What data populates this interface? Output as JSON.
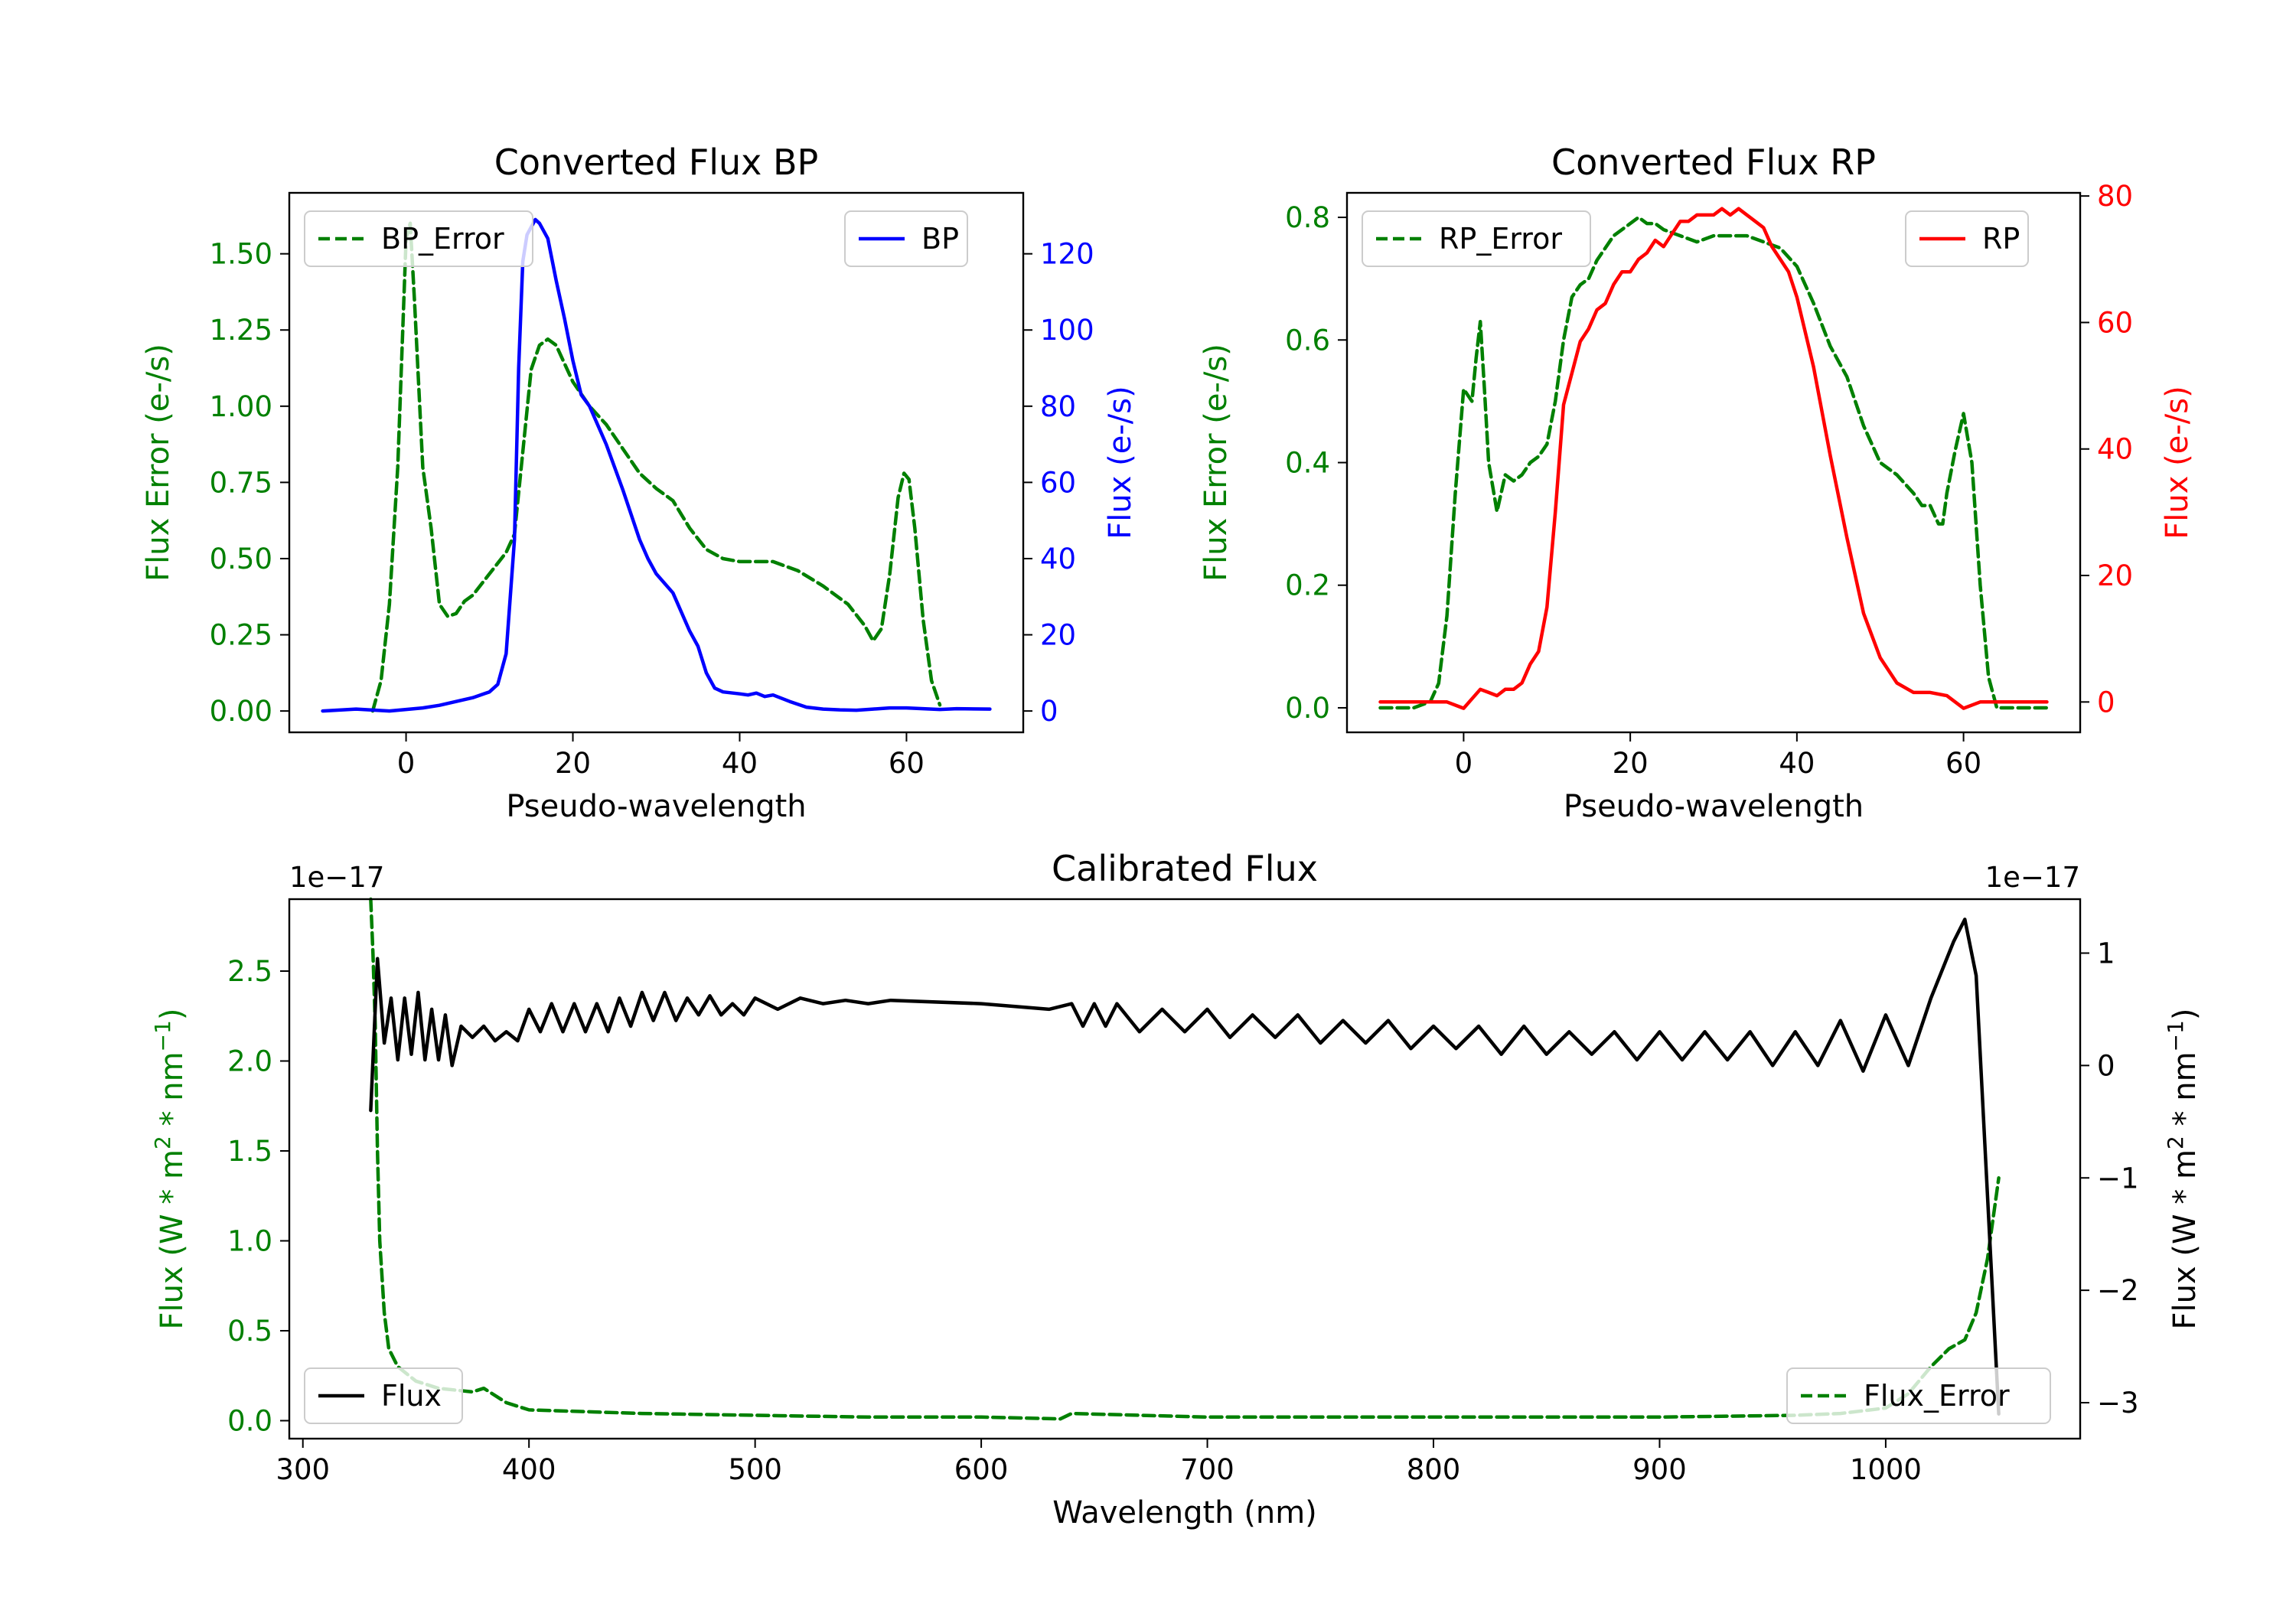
{
  "chart_data": [
    {
      "id": "bp",
      "type": "line",
      "title": "Converted Flux BP",
      "xlabel": "Pseudo-wavelength",
      "ylabel_left": "Flux Error (e-/s)",
      "ylabel_right": "Flux (e-/s)",
      "xlim": [
        -14,
        74
      ],
      "ylim_left": [
        -0.07,
        1.7
      ],
      "ylim_right": [
        -5.6,
        136
      ],
      "xticks": [
        0,
        20,
        40,
        60
      ],
      "yticks_left": [
        "0.00",
        "0.25",
        "0.50",
        "0.75",
        "1.00",
        "1.25",
        "1.50"
      ],
      "yticks_right": [
        "0",
        "20",
        "40",
        "60",
        "80",
        "100",
        "120"
      ],
      "left_color": "#008000",
      "right_color": "#0000ff",
      "series": [
        {
          "name": "BP_Error",
          "axis": "left",
          "style": "dashed",
          "color": "#008000",
          "x": [
            -4,
            -3,
            -2,
            -1,
            0,
            0.5,
            1,
            2,
            3,
            4,
            5,
            6,
            7,
            8,
            10,
            12,
            13,
            14,
            15,
            16,
            17,
            18,
            19,
            20,
            22,
            24,
            26,
            28,
            30,
            32,
            34,
            36,
            38,
            40,
            44,
            47,
            50,
            53,
            55,
            56,
            57,
            58,
            59,
            59.7,
            60.3,
            61,
            62,
            63,
            64
          ],
          "values": [
            0.0,
            0.1,
            0.35,
            0.8,
            1.55,
            1.6,
            1.35,
            0.8,
            0.6,
            0.35,
            0.31,
            0.32,
            0.36,
            0.38,
            0.45,
            0.52,
            0.58,
            0.85,
            1.12,
            1.2,
            1.22,
            1.2,
            1.14,
            1.08,
            1.0,
            0.94,
            0.86,
            0.78,
            0.73,
            0.69,
            0.6,
            0.53,
            0.5,
            0.49,
            0.49,
            0.46,
            0.41,
            0.35,
            0.28,
            0.23,
            0.27,
            0.45,
            0.7,
            0.78,
            0.76,
            0.6,
            0.3,
            0.1,
            0.02
          ]
        },
        {
          "name": "BP",
          "axis": "right",
          "style": "solid",
          "color": "#0000ff",
          "x": [
            -10,
            -6,
            -2,
            2,
            4,
            6,
            8,
            10,
            11,
            12,
            13,
            13.5,
            14,
            14.5,
            15,
            15.5,
            16,
            17,
            18,
            19,
            20,
            21,
            22,
            24,
            26,
            28,
            29,
            30,
            32,
            34,
            35,
            36,
            37,
            38,
            40,
            41,
            42,
            43,
            44,
            46,
            48,
            50,
            52,
            54,
            56,
            58,
            60,
            64,
            66,
            70
          ],
          "values": [
            0.0,
            0.5,
            0.0,
            0.8,
            1.5,
            2.5,
            3.5,
            5,
            7,
            15,
            45,
            90,
            118,
            125,
            127,
            129,
            128,
            124,
            113,
            103,
            92,
            83,
            80,
            70,
            58,
            45,
            40,
            36,
            31,
            21,
            17,
            10,
            6,
            5,
            4.5,
            4.2,
            4.7,
            3.8,
            4.2,
            2.5,
            1.0,
            0.5,
            0.3,
            0.2,
            0.5,
            0.8,
            0.8,
            0.4,
            0.6,
            0.5
          ]
        }
      ]
    },
    {
      "id": "rp",
      "type": "line",
      "title": "Converted Flux RP",
      "xlabel": "Pseudo-wavelength",
      "ylabel_left": "Flux Error (e-/s)",
      "ylabel_right": "Flux (e-/s)",
      "xlim": [
        -14,
        74
      ],
      "ylim_left": [
        -0.04,
        0.84
      ],
      "ylim_right": [
        -4.8,
        80.5
      ],
      "xticks": [
        0,
        20,
        40,
        60
      ],
      "yticks_left": [
        "0.0",
        "0.2",
        "0.4",
        "0.6",
        "0.8"
      ],
      "yticks_right": [
        "0",
        "20",
        "40",
        "60",
        "80"
      ],
      "left_color": "#008000",
      "right_color": "#ff0000",
      "series": [
        {
          "name": "RP_Error",
          "axis": "left",
          "style": "dashed",
          "color": "#008000",
          "x": [
            -10,
            -6,
            -4,
            -3,
            -2,
            -1,
            0,
            1,
            1.5,
            2,
            2.5,
            3,
            4,
            5,
            6,
            7,
            8,
            9,
            10,
            11,
            12,
            13,
            14,
            15,
            16,
            17,
            18,
            20,
            21,
            22,
            23,
            24,
            26,
            28,
            30,
            32,
            34,
            36,
            38,
            40,
            42,
            44,
            46,
            48,
            50,
            52,
            54,
            55,
            56,
            57,
            57.5,
            58,
            59,
            60,
            61,
            62,
            63,
            64,
            66,
            70
          ],
          "values": [
            0.0,
            0.0,
            0.01,
            0.04,
            0.15,
            0.35,
            0.52,
            0.5,
            0.57,
            0.63,
            0.52,
            0.4,
            0.32,
            0.38,
            0.37,
            0.38,
            0.4,
            0.41,
            0.43,
            0.5,
            0.6,
            0.67,
            0.69,
            0.7,
            0.73,
            0.75,
            0.77,
            0.79,
            0.8,
            0.79,
            0.79,
            0.78,
            0.77,
            0.76,
            0.77,
            0.77,
            0.77,
            0.76,
            0.75,
            0.72,
            0.66,
            0.59,
            0.54,
            0.46,
            0.4,
            0.38,
            0.35,
            0.33,
            0.33,
            0.3,
            0.3,
            0.35,
            0.42,
            0.48,
            0.4,
            0.2,
            0.05,
            0.0,
            0.0,
            0.0
          ]
        },
        {
          "name": "RP",
          "axis": "right",
          "style": "solid",
          "color": "#ff0000",
          "x": [
            -10,
            -4,
            -2,
            0,
            1,
            2,
            3,
            4,
            5,
            6,
            7,
            8,
            9,
            10,
            11,
            12,
            13,
            14,
            15,
            16,
            17,
            18,
            19,
            20,
            21,
            22,
            23,
            24,
            25,
            26,
            27,
            28,
            29,
            30,
            31,
            32,
            33,
            34,
            35,
            36,
            37,
            38,
            39,
            40,
            42,
            44,
            46,
            48,
            50,
            52,
            54,
            56,
            58,
            60,
            62,
            66,
            70
          ],
          "values": [
            0,
            0,
            0,
            -1,
            0.5,
            2,
            1.5,
            1,
            2,
            2,
            3,
            6,
            8,
            15,
            30,
            47,
            52,
            57,
            59,
            62,
            63,
            66,
            68,
            68,
            70,
            71,
            73,
            72,
            74,
            76,
            76,
            77,
            77,
            77,
            78,
            77,
            78,
            77,
            76,
            75,
            72,
            70,
            68,
            64,
            53,
            39,
            26,
            14,
            7,
            3,
            1.5,
            1.5,
            1,
            -1,
            0,
            0,
            0
          ]
        }
      ]
    },
    {
      "id": "calibrated",
      "type": "line",
      "title": "Calibrated Flux",
      "xlabel": "Wavelength (nm)",
      "ylabel_left": "Flux (W * m^2 * nm^-1)",
      "ylabel_right": "Flux (W * m^2 * nm^-1)",
      "offset_left": "1e−17",
      "offset_right": "1e−17",
      "xlim": [
        294,
        1086
      ],
      "ylim_left": [
        -0.1,
        2.9
      ],
      "ylim_right": [
        -3.32,
        1.48
      ],
      "xticks": [
        300,
        400,
        500,
        600,
        700,
        800,
        900,
        1000
      ],
      "yticks_left": [
        "0.0",
        "0.5",
        "1.0",
        "1.5",
        "2.0",
        "2.5"
      ],
      "yticks_right": [
        "−3",
        "−2",
        "−1",
        "0",
        "1"
      ],
      "left_color": "#008000",
      "right_color": "#000000",
      "series": [
        {
          "name": "Flux_Error",
          "axis": "left",
          "style": "dashed",
          "color": "#008000",
          "x": [
            330,
            331,
            332,
            333,
            334,
            336,
            338,
            342,
            350,
            360,
            375,
            380,
            390,
            400,
            450,
            500,
            550,
            600,
            635,
            640,
            700,
            800,
            900,
            960,
            980,
            1000,
            1010,
            1020,
            1028,
            1035,
            1040,
            1045,
            1050
          ],
          "values": [
            2.9,
            2.6,
            2.2,
            1.5,
            1.0,
            0.6,
            0.4,
            0.3,
            0.22,
            0.18,
            0.16,
            0.18,
            0.1,
            0.06,
            0.04,
            0.03,
            0.02,
            0.02,
            0.01,
            0.04,
            0.02,
            0.02,
            0.02,
            0.03,
            0.04,
            0.07,
            0.15,
            0.3,
            0.4,
            0.45,
            0.6,
            0.9,
            1.35
          ]
        },
        {
          "name": "Flux",
          "axis": "right",
          "style": "solid",
          "color": "#000000",
          "x": [
            330,
            333,
            336,
            339,
            342,
            345,
            348,
            351,
            354,
            357,
            360,
            363,
            366,
            370,
            375,
            380,
            385,
            390,
            395,
            400,
            405,
            410,
            415,
            420,
            425,
            430,
            435,
            440,
            445,
            450,
            455,
            460,
            465,
            470,
            475,
            480,
            485,
            490,
            495,
            500,
            510,
            520,
            530,
            540,
            550,
            560,
            600,
            630,
            640,
            645,
            650,
            655,
            660,
            670,
            680,
            690,
            700,
            710,
            720,
            730,
            740,
            750,
            760,
            770,
            780,
            790,
            800,
            810,
            820,
            830,
            840,
            850,
            860,
            870,
            880,
            890,
            900,
            910,
            920,
            930,
            940,
            950,
            960,
            970,
            980,
            990,
            1000,
            1010,
            1020,
            1030,
            1035,
            1040,
            1050
          ],
          "values": [
            -0.4,
            0.95,
            0.2,
            0.6,
            0.05,
            0.6,
            0.1,
            0.65,
            0.05,
            0.5,
            0.05,
            0.45,
            0.0,
            0.35,
            0.25,
            0.35,
            0.22,
            0.3,
            0.22,
            0.5,
            0.3,
            0.55,
            0.3,
            0.55,
            0.3,
            0.55,
            0.3,
            0.6,
            0.35,
            0.65,
            0.4,
            0.65,
            0.4,
            0.6,
            0.45,
            0.62,
            0.45,
            0.55,
            0.45,
            0.6,
            0.5,
            0.6,
            0.55,
            0.58,
            0.55,
            0.58,
            0.55,
            0.5,
            0.55,
            0.35,
            0.55,
            0.35,
            0.55,
            0.3,
            0.5,
            0.3,
            0.5,
            0.25,
            0.45,
            0.25,
            0.45,
            0.2,
            0.4,
            0.2,
            0.4,
            0.15,
            0.35,
            0.15,
            0.35,
            0.1,
            0.35,
            0.1,
            0.3,
            0.1,
            0.3,
            0.05,
            0.3,
            0.05,
            0.3,
            0.05,
            0.3,
            0.0,
            0.3,
            0.0,
            0.4,
            -0.05,
            0.45,
            0.0,
            0.6,
            1.1,
            1.3,
            0.8,
            -3.1
          ]
        }
      ]
    }
  ]
}
